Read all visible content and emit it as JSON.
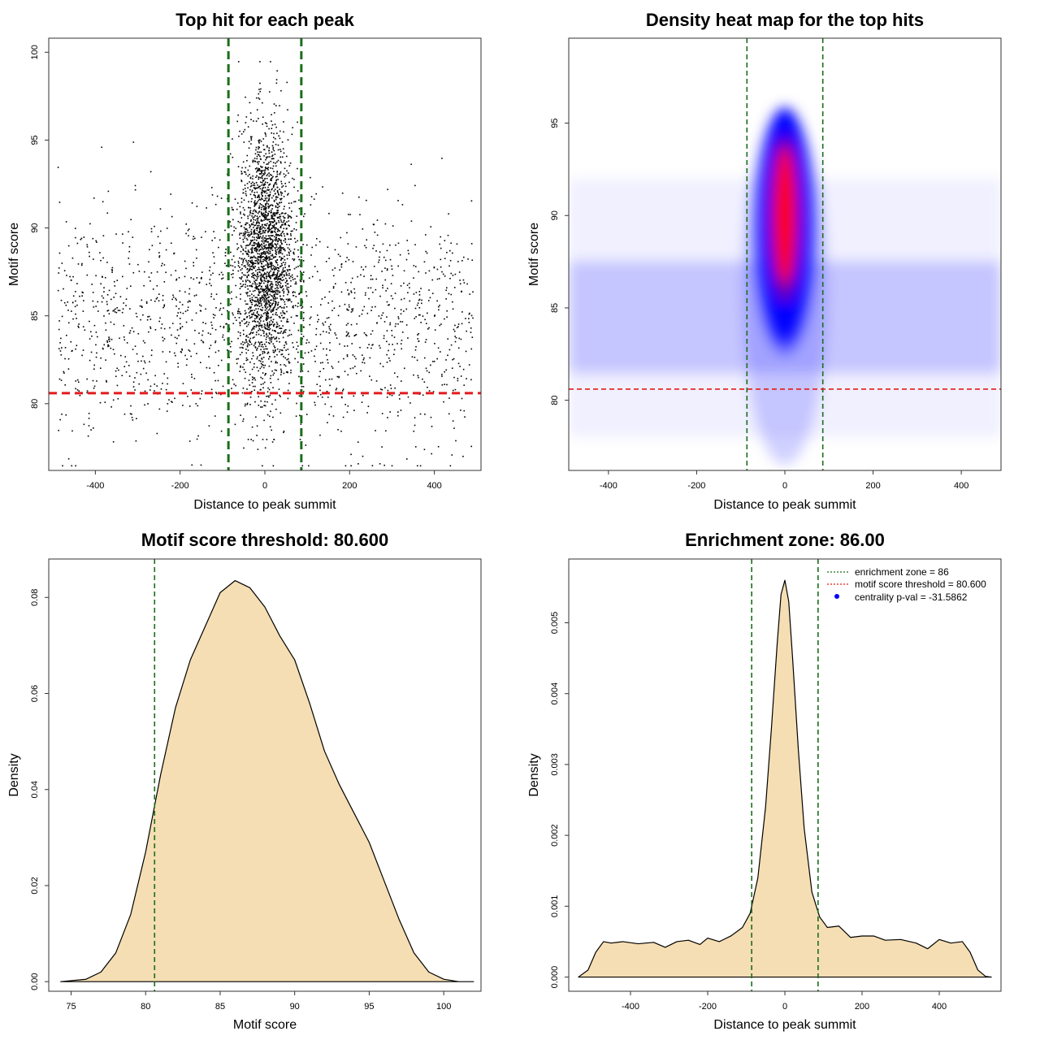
{
  "colors": {
    "threshold_line": "#e41a1c",
    "zone_line": "#1a6e1a",
    "density_fill": "#f5deb3",
    "points": "#000000",
    "heat_low": "#ffffff",
    "heat_mid": "#0000ff",
    "heat_high": "#ff0000",
    "legend_point": "#0000ff"
  },
  "chart_data": [
    {
      "type": "scatter",
      "title": "Top hit for each peak",
      "xlabel": "Distance to peak summit",
      "ylabel": "Motif score",
      "xlim": [
        -510,
        510
      ],
      "ylim": [
        76.2,
        100.8
      ],
      "xticks": [
        -400,
        -200,
        0,
        200,
        400
      ],
      "yticks": [
        80,
        85,
        90,
        95,
        100
      ],
      "hlines": [
        80.6
      ],
      "vlines": [
        -86,
        86
      ],
      "point_distribution": {
        "n_background": 1500,
        "n_central": 2200,
        "background_x_range": [
          -490,
          490
        ],
        "background_score_range": [
          76.5,
          99
        ],
        "central_x_range": [
          -90,
          90
        ],
        "central_score_range": [
          78,
          99.5
        ]
      }
    },
    {
      "type": "heatmap",
      "title": "Density heat map for the top hits",
      "xlabel": "Distance to peak summit",
      "ylabel": "Motif score",
      "xlim": [
        -490,
        490
      ],
      "ylim": [
        76.2,
        99.6
      ],
      "xticks": [
        -400,
        -200,
        0,
        200,
        400
      ],
      "yticks": [
        80,
        85,
        90,
        95
      ],
      "hlines": [
        80.6
      ],
      "vlines": [
        -86,
        86
      ],
      "color_scale": [
        "white",
        "blue",
        "red"
      ],
      "peak": {
        "x": 0,
        "y": 90
      }
    },
    {
      "type": "area",
      "title": "Motif score threshold: 80.600",
      "xlabel": "Motif score",
      "ylabel": "Density",
      "xlim": [
        73.5,
        102.5
      ],
      "ylim": [
        -0.002,
        0.088
      ],
      "xticks": [
        75,
        80,
        85,
        90,
        95,
        100
      ],
      "yticks": [
        0.0,
        0.02,
        0.04,
        0.06,
        0.08
      ],
      "ytick_labels": [
        "0.00",
        "0.02",
        "0.04",
        "0.06",
        "0.08"
      ],
      "vlines": [
        80.6
      ],
      "x": [
        74.3,
        76,
        77,
        78,
        79,
        80,
        81,
        82,
        83,
        84,
        85,
        86,
        87,
        88,
        89,
        90,
        91,
        92,
        93,
        94,
        95,
        96,
        97,
        98,
        99,
        100,
        101,
        102
      ],
      "y": [
        0.0,
        0.0005,
        0.002,
        0.006,
        0.014,
        0.027,
        0.043,
        0.057,
        0.067,
        0.074,
        0.081,
        0.0835,
        0.082,
        0.078,
        0.072,
        0.067,
        0.058,
        0.048,
        0.041,
        0.035,
        0.029,
        0.021,
        0.013,
        0.006,
        0.002,
        0.0005,
        0.0,
        0.0
      ]
    },
    {
      "type": "area",
      "title": "Enrichment zone: 86.00",
      "xlabel": "Distance to peak summit",
      "ylabel": "Density",
      "xlim": [
        -560,
        560
      ],
      "ylim": [
        -0.0002,
        0.0059
      ],
      "xticks": [
        -400,
        -200,
        0,
        200,
        400
      ],
      "yticks": [
        0.0,
        0.001,
        0.002,
        0.003,
        0.004,
        0.005
      ],
      "ytick_labels": [
        "0.000",
        "0.001",
        "0.002",
        "0.003",
        "0.004",
        "0.005"
      ],
      "vlines": [
        -86,
        86
      ],
      "x": [
        -535,
        -510,
        -490,
        -470,
        -450,
        -420,
        -380,
        -340,
        -310,
        -280,
        -250,
        -220,
        -200,
        -170,
        -140,
        -110,
        -90,
        -70,
        -50,
        -35,
        -20,
        -10,
        0,
        10,
        20,
        35,
        50,
        70,
        90,
        110,
        140,
        170,
        200,
        230,
        260,
        300,
        340,
        370,
        400,
        430,
        460,
        480,
        500,
        520,
        535
      ],
      "y": [
        0.0,
        0.0001,
        0.00035,
        0.0005,
        0.00048,
        0.0005,
        0.00047,
        0.00049,
        0.00042,
        0.0005,
        0.00052,
        0.00046,
        0.00055,
        0.0005,
        0.00058,
        0.0007,
        0.0009,
        0.0014,
        0.0024,
        0.0035,
        0.0047,
        0.0054,
        0.0056,
        0.0053,
        0.0045,
        0.0032,
        0.0021,
        0.0012,
        0.00085,
        0.0007,
        0.00072,
        0.00056,
        0.00058,
        0.00058,
        0.00052,
        0.00053,
        0.00048,
        0.0004,
        0.00053,
        0.00048,
        0.0005,
        0.00035,
        0.0001,
        1e-05,
        0.0
      ],
      "legend": [
        {
          "label": "enrichment zone = 86",
          "style": "dotted",
          "color": "#1a6e1a"
        },
        {
          "label": "motif score threshold = 80.600",
          "style": "dotted",
          "color": "#e41a1c"
        },
        {
          "label": "centrality p-val = -31.5862",
          "style": "point",
          "color": "#0000ff"
        }
      ],
      "legend_position": "top-right"
    }
  ]
}
